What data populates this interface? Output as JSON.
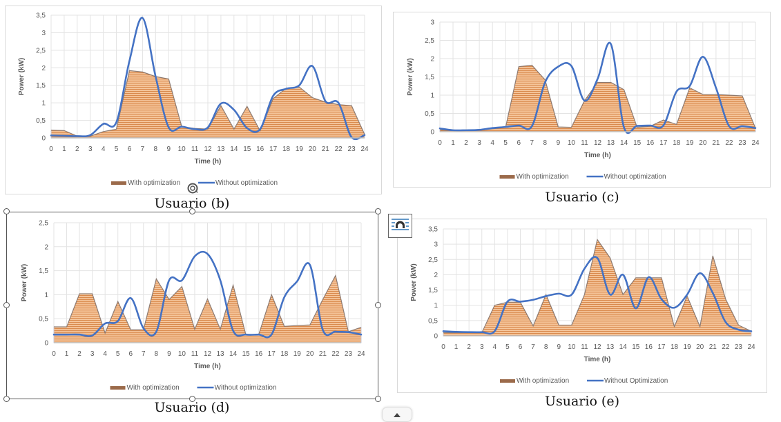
{
  "colors": {
    "area_fill_light": "#f6c79d",
    "area_fill_dark": "#d98a4d",
    "area_edge": "#5a3a22",
    "line": "#4472c4",
    "grid": "#e3e3e3",
    "axis_text": "#595959",
    "legend_area_swatch": "#9b6a4a"
  },
  "chart_data": [
    {
      "id": "b",
      "type": "area+line",
      "caption": "Usuario (b)",
      "xlabel": "Time (h)",
      "ylabel": "Power (kW)",
      "ylim": [
        0,
        3.5
      ],
      "yticks": [
        "0",
        "0,5",
        "1",
        "1,5",
        "2",
        "2,5",
        "3",
        "3,5"
      ],
      "ytick_values": [
        0,
        0.5,
        1,
        1.5,
        2,
        2.5,
        3,
        3.5
      ],
      "x": [
        0,
        1,
        2,
        3,
        4,
        5,
        6,
        7,
        8,
        9,
        10,
        11,
        12,
        13,
        14,
        15,
        16,
        17,
        18,
        19,
        20,
        21,
        22,
        23,
        24
      ],
      "grid": true,
      "legend_position": "bottom",
      "series": [
        {
          "name": "With optimization",
          "kind": "area",
          "values": [
            0.22,
            0.21,
            0.05,
            0.05,
            0.18,
            0.25,
            1.92,
            1.88,
            1.75,
            1.68,
            0.32,
            0.27,
            0.25,
            0.92,
            0.25,
            0.9,
            0.2,
            1.12,
            1.42,
            1.45,
            1.15,
            1.02,
            0.95,
            0.92,
            0.1
          ]
        },
        {
          "name": "Without optimization",
          "kind": "line",
          "values": [
            0.07,
            0.06,
            0.05,
            0.08,
            0.4,
            0.45,
            2.2,
            3.42,
            1.75,
            0.3,
            0.32,
            0.25,
            0.3,
            0.98,
            0.8,
            0.28,
            0.25,
            1.2,
            1.4,
            1.5,
            2.05,
            1.05,
            1.0,
            0.02,
            0.08
          ]
        }
      ]
    },
    {
      "id": "c",
      "type": "area+line",
      "caption": "Usuario (c)",
      "xlabel": "Time (h)",
      "ylabel": "Power (kW)",
      "ylim": [
        0,
        3
      ],
      "yticks": [
        "0",
        "0,5",
        "1",
        "1,5",
        "2",
        "2,5",
        "3"
      ],
      "ytick_values": [
        0,
        0.5,
        1,
        1.5,
        2,
        2.5,
        3
      ],
      "x": [
        0,
        1,
        2,
        3,
        4,
        5,
        6,
        7,
        8,
        9,
        10,
        11,
        12,
        13,
        14,
        15,
        16,
        17,
        18,
        19,
        20,
        21,
        22,
        23,
        24
      ],
      "grid": true,
      "legend_position": "bottom",
      "series": [
        {
          "name": "With optimization",
          "kind": "area",
          "values": [
            0.05,
            0.03,
            0.03,
            0.04,
            0.08,
            0.12,
            1.78,
            1.82,
            1.42,
            0.13,
            0.12,
            0.85,
            1.35,
            1.35,
            1.15,
            0.12,
            0.15,
            0.32,
            0.2,
            1.2,
            1.02,
            1.02,
            1.0,
            0.98,
            0.1
          ]
        },
        {
          "name": "Without optimization",
          "kind": "line",
          "values": [
            0.09,
            0.04,
            0.04,
            0.05,
            0.1,
            0.13,
            0.17,
            0.15,
            1.35,
            1.78,
            1.8,
            0.85,
            1.45,
            2.4,
            0.12,
            0.16,
            0.17,
            0.17,
            1.1,
            1.25,
            2.05,
            1.2,
            0.15,
            0.15,
            0.1
          ]
        }
      ]
    },
    {
      "id": "d",
      "type": "area+line",
      "caption": "Usuario (d)",
      "xlabel": "Time (h)",
      "ylabel": "Power (kW)",
      "ylim": [
        0,
        2.5
      ],
      "yticks": [
        "0",
        "0,5",
        "1",
        "1,5",
        "2",
        "2,5"
      ],
      "ytick_values": [
        0,
        0.5,
        1,
        1.5,
        2,
        2.5
      ],
      "x": [
        0,
        1,
        2,
        3,
        4,
        5,
        6,
        7,
        8,
        9,
        10,
        11,
        12,
        13,
        14,
        15,
        16,
        17,
        18,
        19,
        20,
        21,
        22,
        23,
        24
      ],
      "grid": true,
      "legend_position": "bottom",
      "series": [
        {
          "name": "With optimization",
          "kind": "area",
          "values": [
            0.33,
            0.33,
            1.02,
            1.02,
            0.2,
            0.86,
            0.27,
            0.27,
            1.33,
            0.9,
            1.17,
            0.28,
            0.91,
            0.28,
            1.2,
            0.16,
            0.17,
            1.0,
            0.34,
            0.36,
            0.37,
            0.9,
            1.4,
            0.23,
            0.32
          ]
        },
        {
          "name": "Without optimization",
          "kind": "line",
          "values": [
            0.17,
            0.17,
            0.17,
            0.15,
            0.4,
            0.45,
            0.93,
            0.3,
            0.23,
            1.3,
            1.3,
            1.8,
            1.85,
            1.3,
            0.25,
            0.17,
            0.17,
            0.17,
            0.95,
            1.28,
            1.62,
            0.27,
            0.23,
            0.22,
            0.17
          ]
        }
      ]
    },
    {
      "id": "e",
      "type": "area+line",
      "caption": "Usuario (e)",
      "xlabel": "Time (h)",
      "ylabel": "Power (kW)",
      "ylim": [
        0,
        3.5
      ],
      "yticks": [
        "0",
        "0,5",
        "1",
        "1,5",
        "2",
        "2,5",
        "3",
        "3,5"
      ],
      "ytick_values": [
        0,
        0.5,
        1,
        1.5,
        2,
        2.5,
        3,
        3.5
      ],
      "x": [
        0,
        1,
        2,
        3,
        4,
        5,
        6,
        7,
        8,
        9,
        10,
        11,
        12,
        13,
        14,
        15,
        16,
        17,
        18,
        19,
        20,
        21,
        22,
        23,
        24
      ],
      "grid": true,
      "legend_position": "bottom",
      "series": [
        {
          "name": "With optimization",
          "kind": "area",
          "values": [
            0.1,
            0.1,
            0.1,
            0.1,
            1.0,
            1.1,
            1.1,
            0.32,
            1.35,
            0.35,
            0.35,
            1.35,
            3.15,
            2.55,
            1.35,
            1.9,
            1.9,
            1.9,
            0.3,
            1.3,
            0.3,
            2.62,
            1.2,
            0.35,
            0.15
          ]
        },
        {
          "name": "Without Optimization",
          "kind": "line",
          "values": [
            0.15,
            0.13,
            0.12,
            0.12,
            0.15,
            1.12,
            1.12,
            1.18,
            1.3,
            1.38,
            1.35,
            2.2,
            2.55,
            1.35,
            2.0,
            0.9,
            1.92,
            1.2,
            0.92,
            1.35,
            2.05,
            1.4,
            0.45,
            0.2,
            0.15
          ]
        }
      ]
    }
  ],
  "ui": {
    "layout_options_icon": "layout-options-icon",
    "rotate_handle_icon": "rotate-icon"
  }
}
